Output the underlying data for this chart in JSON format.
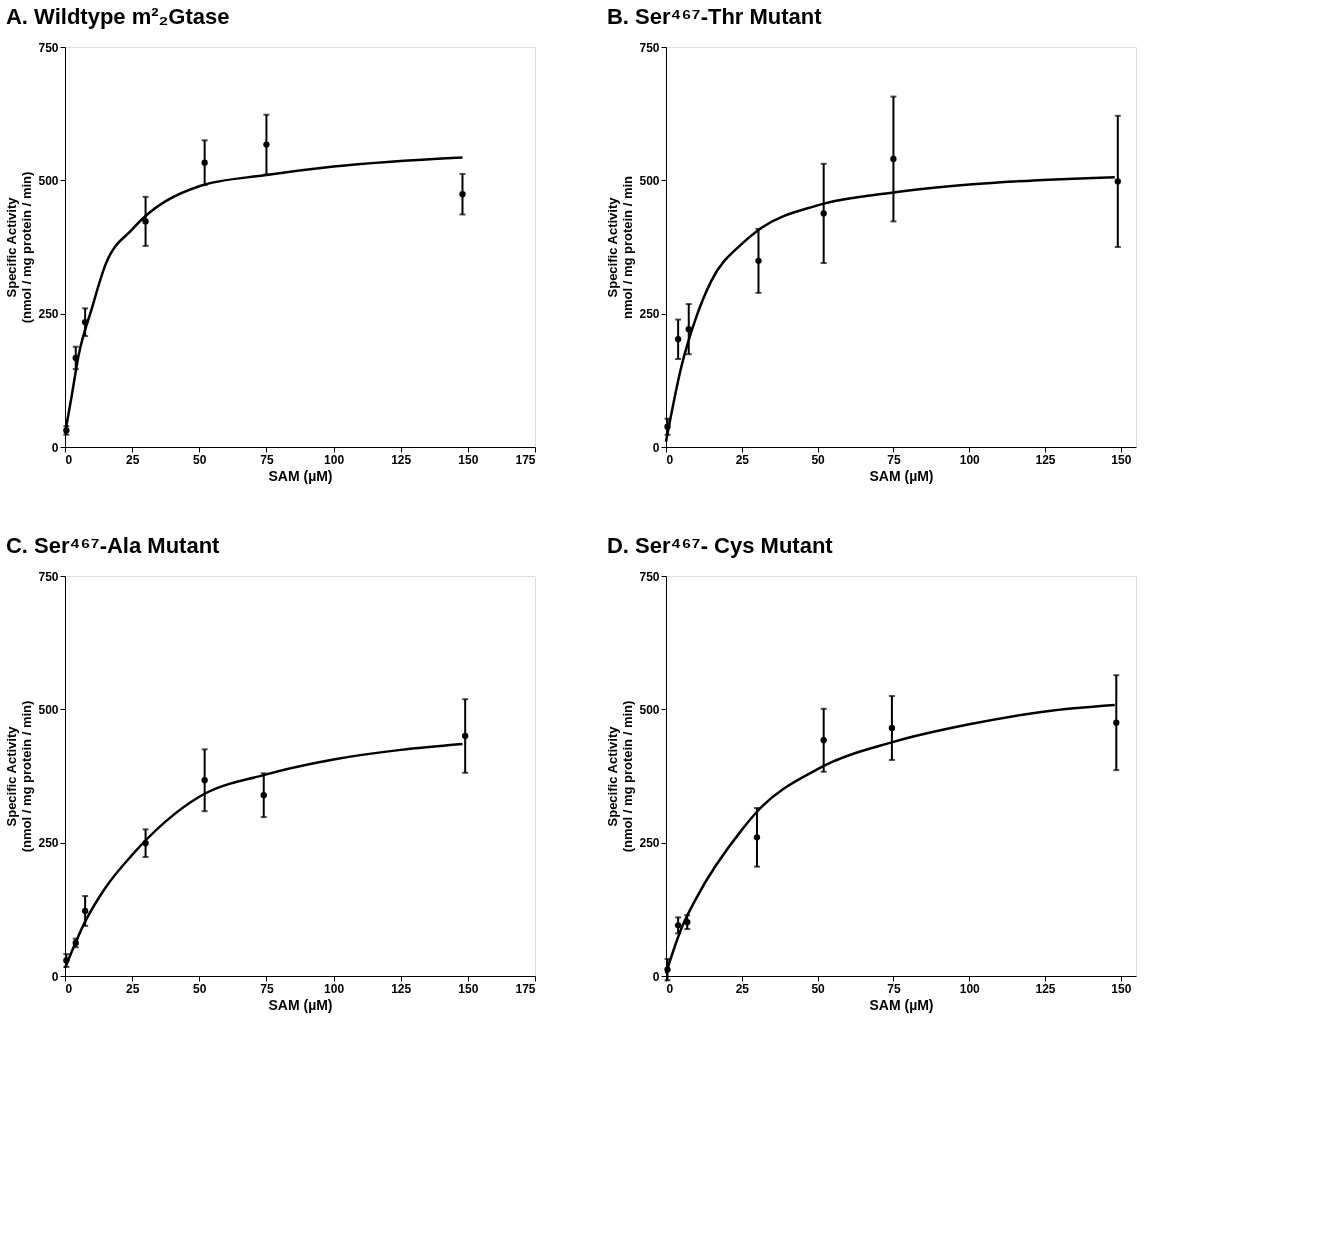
{
  "chart_data": [
    {
      "type": "scatter",
      "title": "A. Wildtype m²₂Gtase",
      "xlabel": "SAM (µM)",
      "ylabel": "Specific Activity\n(nmol / mg protein / min)",
      "xlim": [
        0,
        175
      ],
      "xticks": [
        0,
        25,
        50,
        75,
        100,
        125,
        150,
        175
      ],
      "ylim": [
        0,
        750
      ],
      "yticks": [
        0,
        250,
        500,
        750
      ],
      "grid": false,
      "series": [
        {
          "marker": "circle",
          "color": "#000000",
          "x": [
            0.5,
            4,
            7.5,
            30,
            52,
            75,
            148
          ],
          "values": [
            31,
            167,
            234,
            423,
            533,
            567,
            474
          ],
          "errors": [
            8,
            21,
            26,
            46,
            42,
            56,
            38
          ]
        },
        {
          "type": "line",
          "color": "#000000",
          "x": [
            0,
            2.5,
            5,
            10,
            15,
            25,
            50,
            75,
            100,
            148
          ],
          "values": [
            25,
            96,
            170,
            260,
            341,
            408,
            489,
            510,
            526,
            543
          ]
        }
      ]
    },
    {
      "type": "scatter",
      "title": "B. Ser⁴⁶⁷-Thr Mutant",
      "xlabel": "SAM (µM)",
      "ylabel": "Specific Activity\nnmol / mg protein / min",
      "xlim": [
        0,
        155
      ],
      "xticks": [
        0,
        25,
        50,
        75,
        100,
        125,
        150
      ],
      "ylim": [
        0,
        750
      ],
      "yticks": [
        0,
        250,
        500,
        750
      ],
      "grid": false,
      "series": [
        {
          "marker": "circle",
          "color": "#000000",
          "x": [
            0.5,
            4,
            7.5,
            30.5,
            52,
            75,
            149
          ],
          "values": [
            38,
            202,
            221,
            349,
            438,
            540,
            498
          ],
          "errors": [
            15,
            37,
            47,
            60,
            93,
            117,
            123
          ]
        },
        {
          "type": "line",
          "color": "#000000",
          "x": [
            0,
            5,
            10,
            15,
            25,
            30.5,
            50,
            75,
            100,
            148
          ],
          "values": [
            10,
            149,
            244,
            312,
            381,
            407,
            453,
            477,
            492,
            506
          ]
        }
      ]
    },
    {
      "type": "scatter",
      "title": "C. Ser⁴⁶⁷-Ala Mutant",
      "xlabel": "SAM (µM)",
      "ylabel": "Specific Activity\n(nmol / mg protein / min)",
      "xlim": [
        0,
        175
      ],
      "xticks": [
        0,
        25,
        50,
        75,
        100,
        125,
        150,
        175
      ],
      "ylim": [
        0,
        750
      ],
      "yticks": [
        0,
        250,
        500,
        750
      ],
      "grid": false,
      "series": [
        {
          "marker": "circle",
          "color": "#000000",
          "x": [
            0.5,
            4,
            7.5,
            30,
            52,
            74,
            149
          ],
          "values": [
            29,
            62,
            122,
            249,
            367,
            339,
            450
          ],
          "errors": [
            12,
            8,
            28,
            26,
            58,
            41,
            69
          ]
        },
        {
          "type": "line",
          "color": "#000000",
          "x": [
            0,
            7.5,
            15,
            25,
            50,
            75,
            100,
            125,
            148
          ],
          "values": [
            15,
            102,
            165,
            227,
            336,
            378,
            406,
            424,
            435
          ]
        }
      ]
    },
    {
      "type": "scatter",
      "title": "D. Ser⁴⁶⁷- Cys Mutant",
      "xlabel": "SAM (µM)",
      "ylabel": "Specific Activity\n(nmol / mg protein / min)",
      "xlim": [
        0,
        155
      ],
      "xticks": [
        0,
        25,
        50,
        75,
        100,
        125,
        150
      ],
      "ylim": [
        0,
        750
      ],
      "yticks": [
        0,
        250,
        500,
        750
      ],
      "grid": false,
      "series": [
        {
          "marker": "circle",
          "color": "#000000",
          "x": [
            0.5,
            4,
            7,
            30,
            52,
            74.5,
            148.5
          ],
          "values": [
            12,
            95,
            101,
            260,
            442,
            465,
            475
          ],
          "errors": [
            20,
            15,
            13,
            55,
            59,
            60,
            89
          ]
        },
        {
          "type": "line",
          "color": "#000000",
          "x": [
            0,
            5,
            10,
            25,
            30,
            50,
            75,
            100,
            125,
            148
          ],
          "values": [
            5,
            88,
            146,
            274,
            308,
            388,
            439,
            472,
            496,
            508
          ]
        }
      ]
    }
  ]
}
